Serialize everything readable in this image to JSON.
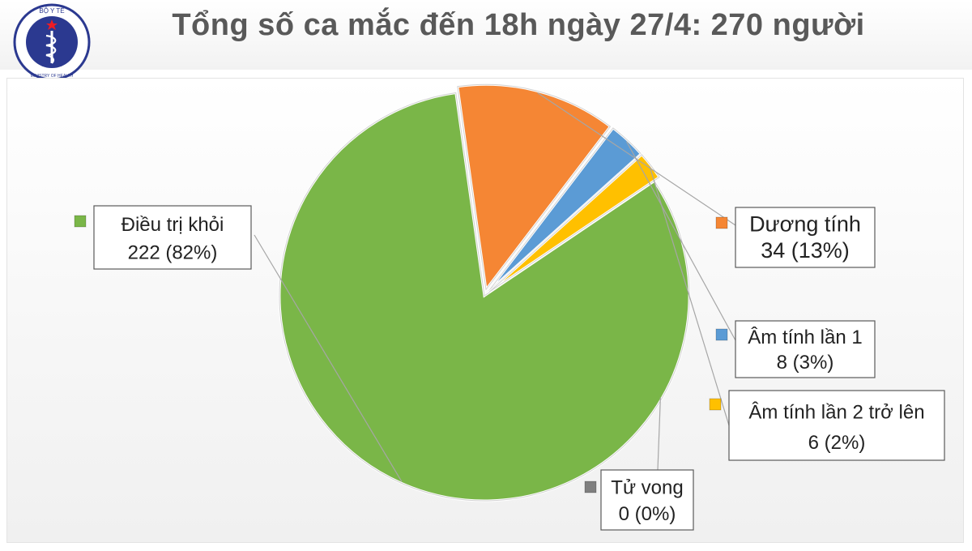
{
  "logo": {
    "top_text": "BỘ Y TẾ",
    "bottom_text": "MINISTRY OF HEALTH",
    "colors": {
      "ring": "#2b3990",
      "background": "#ffffff",
      "star": "#ed1c24"
    }
  },
  "chart_data": {
    "type": "pie",
    "title": "Tổng số ca mắc đến 18h ngày 27/4: 270 người",
    "slices": [
      {
        "label": "Điều trị khỏi",
        "value": 222,
        "value_text": "222 (82%)",
        "color": "#7ab648",
        "exploded": false
      },
      {
        "label": "Dương tính",
        "value": 34,
        "value_text": "34 (13%)",
        "color": "#f58634",
        "exploded": true
      },
      {
        "label": "Âm tính lần 1",
        "value": 8,
        "value_text": "8 (3%)",
        "color": "#5b9bd5",
        "exploded": true
      },
      {
        "label": "Âm tính lần 2 trở lên",
        "value": 6,
        "value_text": "6 (2%)",
        "color": "#ffc000",
        "exploded": true
      },
      {
        "label": "Tử vong",
        "value": 0,
        "value_text": "0 (0%)",
        "color": "#7f7f7f",
        "exploded": false
      }
    ],
    "total": 270,
    "legend": "data-labels-with-leader-lines"
  }
}
